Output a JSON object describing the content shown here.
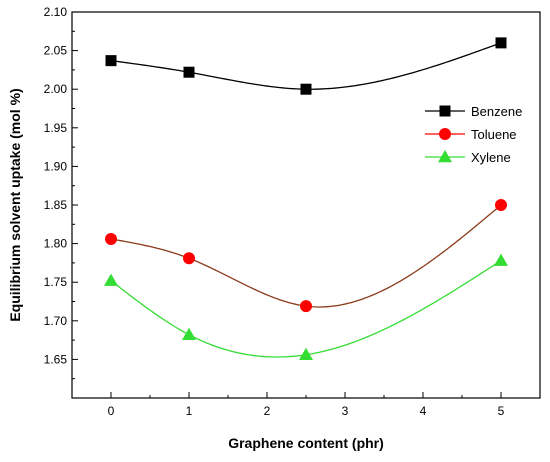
{
  "chart_data": {
    "type": "line",
    "title": "",
    "xlabel": "Graphene content (phr)",
    "ylabel": "Equilibrium solvent uptake (mol %)",
    "xlim": [
      -0.5,
      5.5
    ],
    "ylim": [
      1.6,
      2.1
    ],
    "xticks": [
      0,
      1,
      2,
      3,
      4,
      5
    ],
    "xtick_labels": [
      "0",
      "1",
      "2",
      "3",
      "4",
      "5"
    ],
    "yticks": [
      1.65,
      1.7,
      1.75,
      1.8,
      1.85,
      1.9,
      1.95,
      2.0,
      2.05,
      2.1
    ],
    "ytick_labels": [
      "1.65",
      "1.70",
      "1.75",
      "1.80",
      "1.85",
      "1.90",
      "1.95",
      "2.00",
      "2.05",
      "2.10"
    ],
    "grid": false,
    "legend_position": "right",
    "x": [
      0,
      1,
      2.5,
      5
    ],
    "series": [
      {
        "name": "Benzene",
        "values": [
          2.037,
          2.022,
          2.0,
          2.06
        ],
        "color": "#000000",
        "marker": "square",
        "curve_color": "#000000"
      },
      {
        "name": "Toluene",
        "values": [
          1.806,
          1.781,
          1.719,
          1.85
        ],
        "color": "#ff0000",
        "marker": "circle",
        "curve_color": "#8b3a1a"
      },
      {
        "name": "Xylene",
        "values": [
          1.752,
          1.682,
          1.656,
          1.778
        ],
        "color": "#33dd33",
        "marker": "triangle",
        "curve_color": "#33dd33"
      }
    ]
  }
}
